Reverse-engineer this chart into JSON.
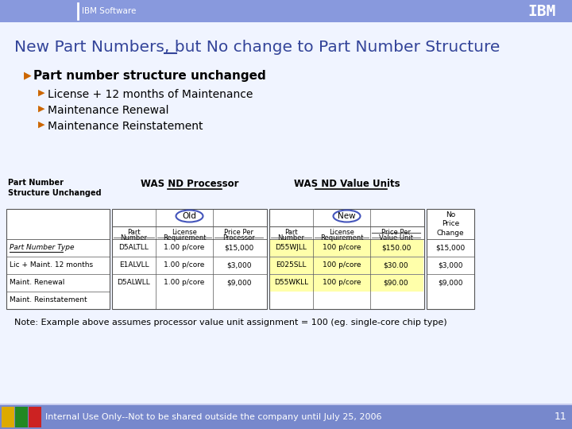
{
  "bg_color": "#c8ccee",
  "content_bg": "#f0f4ff",
  "header_bg": "#8899dd",
  "header_text": "IBM Software",
  "title": "New Part Numbers, but No change to Part Number Structure",
  "title_color": "#334499",
  "bullet_color": "#cc6600",
  "bullets_main": "Part number structure unchanged",
  "bullets_sub": [
    "License + 12 months of Maintenance",
    "Maintenance Renewal",
    "Maintenance Reinstatement"
  ],
  "col1_header": "WAS ND Processor",
  "col1_underline_word": "Processor",
  "col1_sub": "Old",
  "col1_data": [
    [
      "D5ALTLL",
      "1.00 p/core",
      "$15,000"
    ],
    [
      "E1ALVLL",
      "1.00 p/core",
      "$3,000"
    ],
    [
      "D5ALWLL",
      "1.00 p/core",
      "$9,000"
    ]
  ],
  "col2_header": "WAS ND Value Units",
  "col2_underline_word": "Value Units",
  "col2_sub": "New",
  "col2_data": [
    [
      "D55WJLL",
      "100 p/core",
      "$150.00"
    ],
    [
      "E025SLL",
      "100 p/core",
      "$30.00"
    ],
    [
      "D55WKLL",
      "100 p/core",
      "$90.00"
    ]
  ],
  "left_rows": [
    "Part Number Type",
    "Lic + Maint. 12 months",
    "Maint. Renewal",
    "Maint. Reinstatement"
  ],
  "col3_data": [
    "$15,000",
    "$3,000",
    "$9,000"
  ],
  "note": "Note: Example above assumes processor value unit assignment = 100 (eg. single-core chip type)",
  "footer_text": "Internal Use Only--Not to be shared outside the company until July 25, 2006",
  "footer_bg": "#7788cc",
  "footer_num": "11",
  "yellow_bg": "#ffffaa",
  "white_bg": "#ffffff",
  "table_border": "#555555",
  "oval_color": "#4455bb",
  "footer_colors": [
    "#ddaa00",
    "#228822",
    "#cc2222"
  ]
}
